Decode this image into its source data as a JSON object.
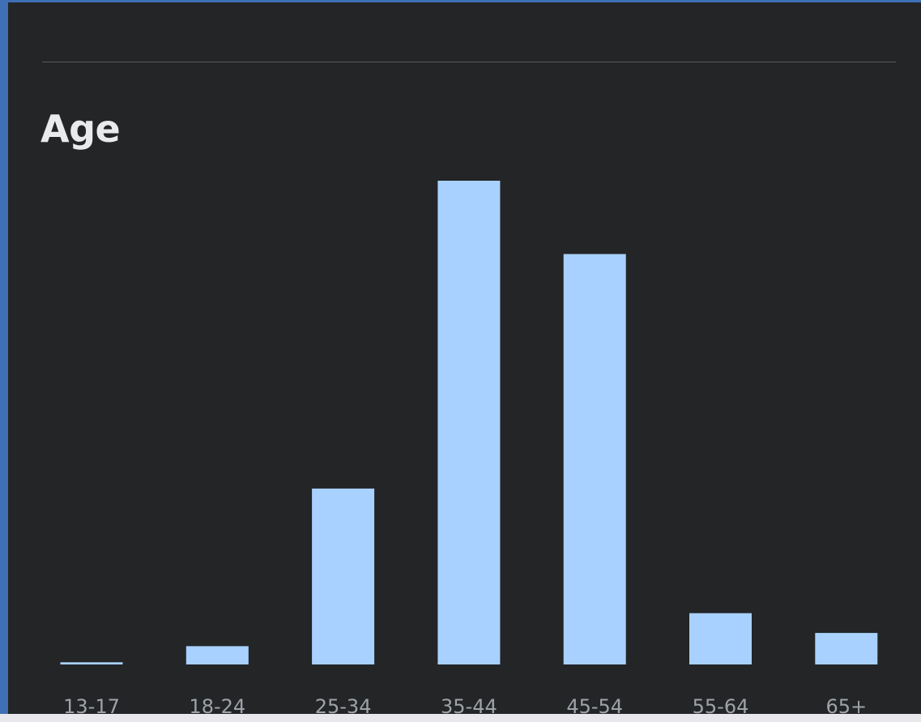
{
  "section": {
    "title": "Age"
  },
  "colors": {
    "bar": "#a8d1ff",
    "background": "#232527",
    "frame": "#3f6fb4",
    "tick_label": "#9fa3a8",
    "title": "#e9eaeb"
  },
  "chart_data": {
    "type": "bar",
    "title": "Age",
    "categories": [
      "13-17",
      "18-24",
      "25-34",
      "35-44",
      "45-54",
      "55-64",
      "65+"
    ],
    "values": [
      0.3,
      2.5,
      24.0,
      66.0,
      56.0,
      7.0,
      4.3
    ],
    "xlabel": "",
    "ylabel": "",
    "ylim": [
      0,
      66
    ],
    "grid": false,
    "legend": "none",
    "y_axis_visible": false
  }
}
